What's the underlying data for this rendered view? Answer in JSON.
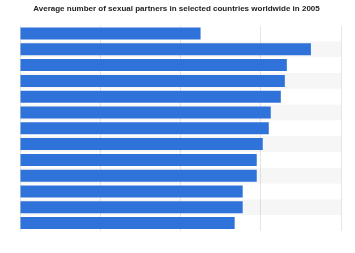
{
  "chart_data": {
    "type": "bar",
    "title": "Average number of sexual partners in selected countries worldwide in 2005",
    "categories": [
      null,
      null,
      null,
      null,
      null,
      null,
      null,
      null,
      null,
      null,
      null,
      null,
      null
    ],
    "values": [
      9.0,
      14.5,
      13.3,
      13.2,
      13.0,
      12.5,
      12.4,
      12.1,
      11.8,
      11.8,
      11.1,
      11.1,
      10.7
    ],
    "color": "#2f72d9",
    "orientation": "horizontal",
    "xlim": [
      0,
      16
    ],
    "xticks": [
      0,
      4,
      8,
      12,
      16
    ],
    "grid": true,
    "tick_labels": false
  }
}
